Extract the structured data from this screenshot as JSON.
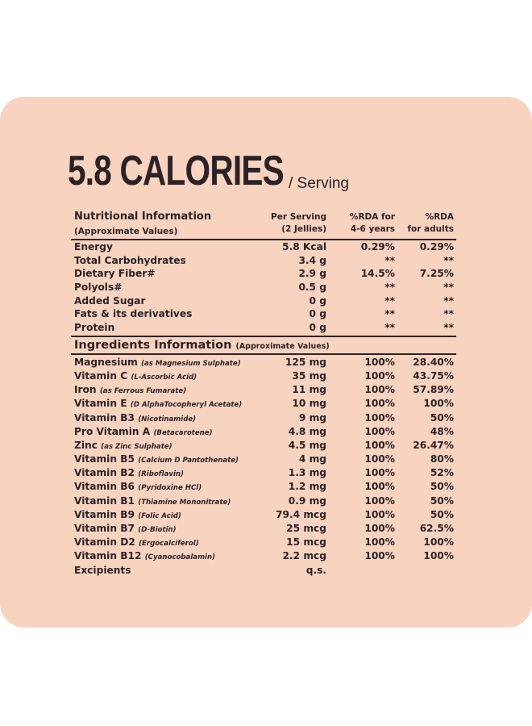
{
  "headline": {
    "calories": "5.8 CALORIES",
    "per": "/ Serving"
  },
  "header": {
    "col1_title": "Nutritional Information",
    "col1_sub": "(Approximate Values)",
    "col2_a": "Per Serving",
    "col2_b": "(2 Jellies)",
    "col3_a": "%RDA for",
    "col3_b": "4-6 years",
    "col4_a": "%RDA",
    "col4_b": "for adults"
  },
  "nutrition": [
    {
      "name": "Energy",
      "per": "5.8 Kcal",
      "kids": "0.29%",
      "adults": "0.29%"
    },
    {
      "name": "Total Carbohydrates",
      "per": "3.4 g",
      "kids": "**",
      "adults": "**"
    },
    {
      "name": "Dietary Fiber#",
      "per": "2.9 g",
      "kids": "14.5%",
      "adults": "7.25%"
    },
    {
      "name": "Polyols#",
      "per": "0.5 g",
      "kids": "**",
      "adults": "**"
    },
    {
      "name": "Added Sugar",
      "per": "0 g",
      "kids": "**",
      "adults": "**"
    },
    {
      "name": "Fats & its derivatives",
      "per": "0 g",
      "kids": "**",
      "adults": "**"
    },
    {
      "name": "Protein",
      "per": "0 g",
      "kids": "**",
      "adults": "**"
    }
  ],
  "ingredients_header": {
    "title": "Ingredients Information",
    "sub": "(Approximate Values)"
  },
  "ingredients": [
    {
      "name": "Magnesium",
      "source": "(as Magnesium Sulphate)",
      "per": "125 mg",
      "kids": "100%",
      "adults": "28.40%"
    },
    {
      "name": "Vitamin C",
      "source": "(L-Ascorbic Acid)",
      "per": "35 mg",
      "kids": "100%",
      "adults": "43.75%"
    },
    {
      "name": "Iron",
      "source": "(as Ferrous Fumarate)",
      "per": "11 mg",
      "kids": "100%",
      "adults": "57.89%"
    },
    {
      "name": "Vitamin E",
      "source": "(D AlphaTocopheryl Acetate)",
      "per": "10 mg",
      "kids": "100%",
      "adults": "100%"
    },
    {
      "name": "Vitamin B3",
      "source": "(Nicotinamide)",
      "per": "9 mg",
      "kids": "100%",
      "adults": "50%"
    },
    {
      "name": "Pro Vitamin A",
      "source": "(Betacarotene)",
      "per": "4.8 mg",
      "kids": "100%",
      "adults": "48%"
    },
    {
      "name": "Zinc",
      "source": "(as Zinc Sulphate)",
      "per": "4.5 mg",
      "kids": "100%",
      "adults": "26.47%"
    },
    {
      "name": "Vitamin B5",
      "source": "(Calcium D Pantothenate)",
      "per": "4 mg",
      "kids": "100%",
      "adults": "80%"
    },
    {
      "name": "Vitamin B2",
      "source": "(Riboflavin)",
      "per": "1.3 mg",
      "kids": "100%",
      "adults": "52%"
    },
    {
      "name": "Vitamin B6",
      "source": "(Pyridoxine HCl)",
      "per": "1.2 mg",
      "kids": "100%",
      "adults": "50%"
    },
    {
      "name": "Vitamin B1",
      "source": "(Thiamine Mononitrate)",
      "per": "0.9 mg",
      "kids": "100%",
      "adults": "50%"
    },
    {
      "name": "Vitamin B9",
      "source": "(Folic Acid)",
      "per": "79.4 mcg",
      "kids": "100%",
      "adults": "50%"
    },
    {
      "name": "Vitamin B7",
      "source": "(D-Biotin)",
      "per": "25 mcg",
      "kids": "100%",
      "adults": "62.5%"
    },
    {
      "name": "Vitamin D2",
      "source": "(Ergocalciferol)",
      "per": "15 mcg",
      "kids": "100%",
      "adults": "100%"
    },
    {
      "name": "Vitamin B12",
      "source": "(Cyanocobalamin)",
      "per": "2.2 mcg",
      "kids": "100%",
      "adults": "100%"
    },
    {
      "name": "Excipients",
      "source": "",
      "per": "q.s.",
      "kids": "",
      "adults": ""
    }
  ],
  "colors": {
    "panel": "#f8d4c0",
    "text": "#2b2226"
  }
}
